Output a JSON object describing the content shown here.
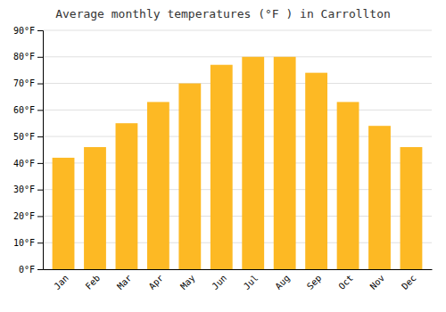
{
  "chart_data": {
    "type": "bar",
    "title": "Average monthly temperatures (°F ) in Carrollton",
    "categories": [
      "Jan",
      "Feb",
      "Mar",
      "Apr",
      "May",
      "Jun",
      "Jul",
      "Aug",
      "Sep",
      "Oct",
      "Nov",
      "Dec"
    ],
    "values": [
      42,
      46,
      55,
      63,
      70,
      77,
      80,
      80,
      74,
      63,
      54,
      46
    ],
    "color": "#FDB924",
    "ylim": [
      0,
      90
    ],
    "yticks": [
      {
        "value": 0,
        "label": "0°F"
      },
      {
        "value": 10,
        "label": "10°F"
      },
      {
        "value": 20,
        "label": "20°F"
      },
      {
        "value": 30,
        "label": "30°F"
      },
      {
        "value": 40,
        "label": "40°F"
      },
      {
        "value": 50,
        "label": "50°F"
      },
      {
        "value": 60,
        "label": "60°F"
      },
      {
        "value": 70,
        "label": "70°F"
      },
      {
        "value": 80,
        "label": "80°F"
      },
      {
        "value": 90,
        "label": "90°F"
      }
    ],
    "grid": true
  }
}
